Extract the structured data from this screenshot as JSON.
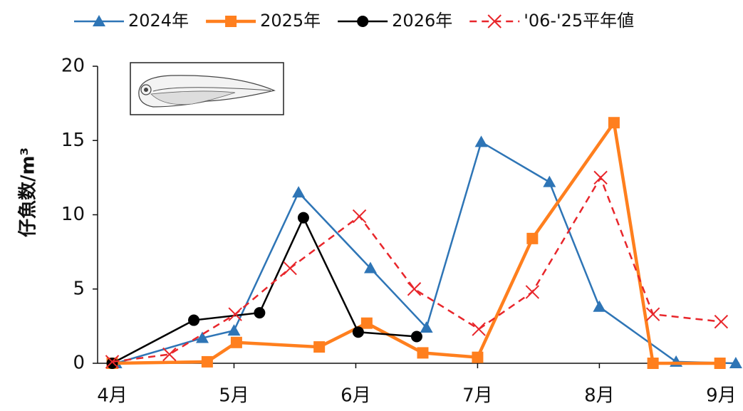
{
  "chart_data": {
    "type": "line",
    "y_label": "仔魚数/m³",
    "xlim": [
      3.88,
      9.15
    ],
    "xticks": [
      {
        "value": 4,
        "label": "4月"
      },
      {
        "value": 5,
        "label": "5月"
      },
      {
        "value": 6,
        "label": "6月"
      },
      {
        "value": 7,
        "label": "7月"
      },
      {
        "value": 8,
        "label": "8月"
      },
      {
        "value": 9,
        "label": "9月"
      }
    ],
    "ylim": [
      0,
      20
    ],
    "yticks": [
      0,
      5,
      10,
      15,
      20
    ],
    "legend": "top",
    "series": [
      {
        "name": "2024年",
        "color": "#2e75b6",
        "marker": "triangle",
        "dash": false,
        "x": [
          4.03,
          4.74,
          5.0,
          5.53,
          6.12,
          6.58,
          7.03,
          7.59,
          8.0,
          8.63,
          9.12
        ],
        "values": [
          0,
          1.7,
          2.2,
          11.5,
          6.4,
          2.4,
          14.9,
          12.2,
          3.8,
          0.1,
          0
        ]
      },
      {
        "name": "2025年",
        "color": "#ff7f1e",
        "marker": "square",
        "dash": false,
        "x": [
          4.0,
          4.78,
          5.02,
          5.7,
          6.09,
          6.55,
          7.0,
          7.45,
          8.12,
          8.44,
          8.99
        ],
        "values": [
          0,
          0.1,
          1.4,
          1.1,
          2.7,
          0.7,
          0.4,
          8.4,
          16.2,
          0,
          0
        ]
      },
      {
        "name": "2026年",
        "color": "#000000",
        "marker": "circle",
        "dash": false,
        "x": [
          4.0,
          4.67,
          5.21,
          5.57,
          6.02,
          6.5
        ],
        "values": [
          0,
          2.9,
          3.4,
          9.8,
          2.1,
          1.8
        ]
      },
      {
        "name": "'06-'25平年値",
        "color": "#e8262b",
        "marker": "cross",
        "dash": true,
        "x": [
          4.0,
          4.47,
          5.01,
          5.46,
          6.03,
          6.48,
          7.01,
          7.45,
          8.01,
          8.44,
          9.0
        ],
        "values": [
          0.1,
          0.6,
          3.3,
          6.4,
          9.9,
          5.0,
          2.3,
          4.8,
          12.5,
          3.3,
          2.8
        ]
      }
    ]
  }
}
